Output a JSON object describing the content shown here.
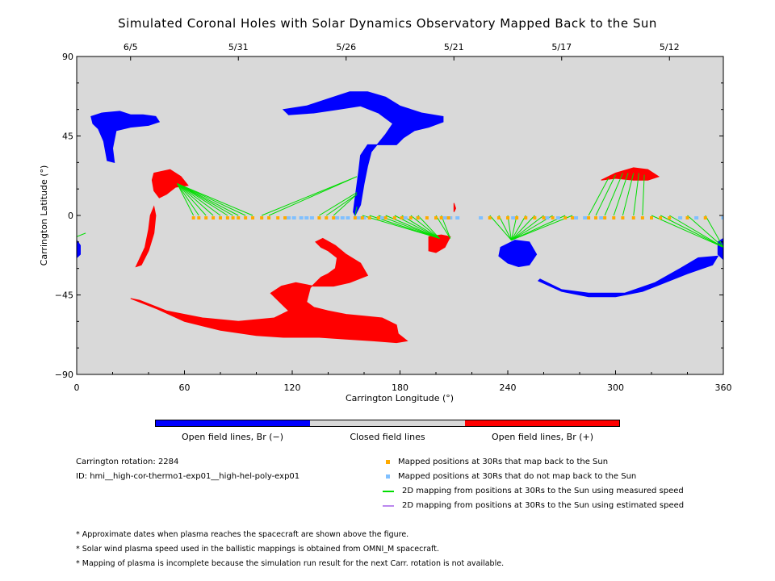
{
  "title": "Simulated Coronal Holes with Solar Dynamics Observatory Mapped Back to the Sun",
  "chart_data": {
    "type": "scatter",
    "xlabel": "Carrington Longitude (°)",
    "ylabel": "Carrington Latitude (°)",
    "xlim": [
      0,
      360
    ],
    "ylim": [
      -90,
      90
    ],
    "x_ticks": [
      0,
      60,
      120,
      180,
      240,
      300,
      360
    ],
    "y_ticks": [
      -90,
      -45,
      0,
      45,
      90
    ],
    "y_tick_labels": [
      "−90",
      "−45",
      "0",
      "45",
      "90"
    ],
    "top_axis_dates": [
      {
        "label": "6/5",
        "lon": 30
      },
      {
        "label": "5/31",
        "lon": 90
      },
      {
        "label": "5/26",
        "lon": 150
      },
      {
        "label": "5/21",
        "lon": 210
      },
      {
        "label": "5/17",
        "lon": 270
      },
      {
        "label": "5/12",
        "lon": 330
      }
    ],
    "background_color": "#d9d9d9",
    "colors": {
      "open_negative": "#0000ff",
      "open_positive": "#ff0000",
      "closed": "#d9d9d9",
      "mapped": "#ffaa00",
      "unmapped": "#80c0ff",
      "measured_line": "#00dd00",
      "estimated_line": "#bb88ee"
    },
    "coronal_holes": [
      {
        "polarity": "negative",
        "points": [
          [
            8,
            56
          ],
          [
            14,
            58
          ],
          [
            24,
            59
          ],
          [
            30,
            57
          ],
          [
            37,
            57
          ],
          [
            44,
            56
          ],
          [
            46,
            53
          ],
          [
            40,
            51
          ],
          [
            30,
            50
          ],
          [
            22,
            48
          ],
          [
            20,
            38
          ],
          [
            21,
            30
          ],
          [
            17,
            31
          ],
          [
            15,
            42
          ],
          [
            12,
            49
          ],
          [
            9,
            52
          ]
        ]
      },
      {
        "polarity": "negative",
        "points": [
          [
            115,
            60
          ],
          [
            128,
            62
          ],
          [
            140,
            66
          ],
          [
            152,
            70
          ],
          [
            162,
            70
          ],
          [
            172,
            67
          ],
          [
            180,
            62
          ],
          [
            192,
            58
          ],
          [
            204,
            56
          ],
          [
            204,
            53
          ],
          [
            196,
            50
          ],
          [
            188,
            48
          ],
          [
            182,
            44
          ],
          [
            178,
            40
          ],
          [
            168,
            40
          ],
          [
            162,
            40
          ],
          [
            158,
            34
          ],
          [
            157,
            25
          ],
          [
            155,
            10
          ],
          [
            154,
            2
          ],
          [
            155,
            0
          ],
          [
            158,
            6
          ],
          [
            160,
            18
          ],
          [
            162,
            28
          ],
          [
            164,
            36
          ],
          [
            172,
            46
          ],
          [
            176,
            52
          ],
          [
            168,
            58
          ],
          [
            158,
            62
          ],
          [
            145,
            60
          ],
          [
            132,
            58
          ],
          [
            118,
            57
          ]
        ]
      },
      {
        "polarity": "negative",
        "points": [
          [
            0,
            -14
          ],
          [
            2,
            -17
          ],
          [
            2,
            -22
          ],
          [
            0,
            -24
          ]
        ]
      },
      {
        "polarity": "negative",
        "points": [
          [
            236,
            -18
          ],
          [
            244,
            -14
          ],
          [
            252,
            -15
          ],
          [
            256,
            -22
          ],
          [
            252,
            -28
          ],
          [
            246,
            -29
          ],
          [
            240,
            -27
          ],
          [
            235,
            -23
          ]
        ]
      },
      {
        "polarity": "negative",
        "points": [
          [
            257,
            -37
          ],
          [
            270,
            -43
          ],
          [
            285,
            -46
          ],
          [
            300,
            -46
          ],
          [
            315,
            -43
          ],
          [
            325,
            -39
          ],
          [
            340,
            -33
          ],
          [
            354,
            -28
          ],
          [
            357,
            -23
          ],
          [
            346,
            -24
          ],
          [
            336,
            -30
          ],
          [
            322,
            -38
          ],
          [
            305,
            -44
          ],
          [
            285,
            -44
          ],
          [
            270,
            -42
          ],
          [
            258,
            -36
          ]
        ]
      },
      {
        "polarity": "negative",
        "points": [
          [
            357,
            -15
          ],
          [
            360,
            -13
          ],
          [
            360,
            -25
          ],
          [
            357,
            -22
          ]
        ]
      },
      {
        "polarity": "positive",
        "points": [
          [
            43,
            24
          ],
          [
            52,
            26
          ],
          [
            58,
            22
          ],
          [
            62,
            17
          ],
          [
            55,
            16
          ],
          [
            50,
            12
          ],
          [
            46,
            10
          ],
          [
            43,
            14
          ],
          [
            42,
            20
          ]
        ]
      },
      {
        "polarity": "positive",
        "points": [
          [
            43,
            5
          ],
          [
            44,
            0
          ],
          [
            43,
            -10
          ],
          [
            40,
            -20
          ],
          [
            36,
            -28
          ],
          [
            33,
            -29
          ],
          [
            38,
            -18
          ],
          [
            40,
            -8
          ],
          [
            41,
            0
          ]
        ]
      },
      {
        "polarity": "positive",
        "points": [
          [
            196,
            -12
          ],
          [
            203,
            -11
          ],
          [
            208,
            -12
          ],
          [
            205,
            -18
          ],
          [
            200,
            -21
          ],
          [
            196,
            -20
          ]
        ]
      },
      {
        "polarity": "positive",
        "points": [
          [
            210,
            7
          ],
          [
            211,
            4
          ],
          [
            210,
            2
          ]
        ]
      },
      {
        "polarity": "positive",
        "points": [
          [
            292,
            20
          ],
          [
            300,
            24
          ],
          [
            310,
            27
          ],
          [
            318,
            26
          ],
          [
            324,
            22
          ],
          [
            318,
            20
          ],
          [
            310,
            20
          ],
          [
            300,
            21
          ]
        ]
      },
      {
        "polarity": "positive",
        "points": [
          [
            30,
            -47
          ],
          [
            45,
            -53
          ],
          [
            60,
            -60
          ],
          [
            80,
            -65
          ],
          [
            100,
            -68
          ],
          [
            115,
            -69
          ],
          [
            135,
            -69
          ],
          [
            150,
            -70
          ],
          [
            165,
            -71
          ],
          [
            178,
            -72
          ],
          [
            184,
            -71
          ],
          [
            179,
            -67
          ],
          [
            178,
            -62
          ],
          [
            170,
            -58
          ],
          [
            160,
            -57
          ],
          [
            150,
            -56
          ],
          [
            140,
            -54
          ],
          [
            132,
            -52
          ],
          [
            128,
            -49
          ],
          [
            130,
            -41
          ],
          [
            136,
            -35
          ],
          [
            140,
            -33
          ],
          [
            144,
            -30
          ],
          [
            145,
            -24
          ],
          [
            140,
            -20
          ],
          [
            136,
            -18
          ],
          [
            133,
            -15
          ],
          [
            137,
            -13
          ],
          [
            144,
            -17
          ],
          [
            150,
            -22
          ],
          [
            158,
            -27
          ],
          [
            162,
            -34
          ],
          [
            152,
            -38
          ],
          [
            143,
            -40
          ],
          [
            132,
            -40
          ],
          [
            122,
            -38
          ],
          [
            114,
            -40
          ],
          [
            108,
            -44
          ],
          [
            114,
            -50
          ],
          [
            118,
            -54
          ],
          [
            110,
            -58
          ],
          [
            90,
            -60
          ],
          [
            70,
            -58
          ],
          [
            50,
            -54
          ],
          [
            35,
            -48
          ]
        ]
      }
    ],
    "mapped_positions_lon": [
      65,
      68,
      72,
      76,
      80,
      84,
      87,
      90,
      94,
      98,
      103,
      107,
      112,
      116,
      135,
      139,
      143,
      155,
      159,
      163,
      168,
      172,
      177,
      181,
      186,
      190,
      195,
      200,
      203,
      207,
      230,
      235,
      240,
      245,
      250,
      255,
      260,
      265,
      272,
      276,
      285,
      289,
      294,
      299,
      304,
      310,
      315,
      320,
      325,
      330,
      340,
      350
    ],
    "unmapped_positions_lon": [
      118,
      121,
      125,
      128,
      131,
      145,
      148,
      151,
      157,
      160,
      170,
      183,
      190,
      205,
      208,
      212,
      225,
      243,
      262,
      268,
      278,
      283,
      292,
      336,
      345,
      360
    ],
    "measured_mappings": [
      [
        [
          65,
          0
        ],
        [
          56,
          18
        ]
      ],
      [
        [
          68,
          0
        ],
        [
          56,
          18
        ]
      ],
      [
        [
          72,
          0
        ],
        [
          56,
          18
        ]
      ],
      [
        [
          76,
          0
        ],
        [
          56,
          18
        ]
      ],
      [
        [
          80,
          0
        ],
        [
          56,
          18
        ]
      ],
      [
        [
          84,
          0
        ],
        [
          56,
          18
        ]
      ],
      [
        [
          87,
          0
        ],
        [
          56,
          18
        ]
      ],
      [
        [
          90,
          0
        ],
        [
          56,
          18
        ]
      ],
      [
        [
          94,
          0
        ],
        [
          56,
          18
        ]
      ],
      [
        [
          98,
          0
        ],
        [
          56,
          18
        ]
      ],
      [
        [
          103,
          0
        ],
        [
          156,
          22
        ]
      ],
      [
        [
          107,
          0
        ],
        [
          156,
          22
        ]
      ],
      [
        [
          135,
          0
        ],
        [
          156,
          13
        ]
      ],
      [
        [
          139,
          0
        ],
        [
          156,
          12
        ]
      ],
      [
        [
          143,
          0
        ],
        [
          156,
          12
        ]
      ],
      [
        [
          155,
          0
        ],
        [
          156,
          5
        ]
      ],
      [
        [
          159,
          0
        ],
        [
          202,
          -13
        ]
      ],
      [
        [
          163,
          0
        ],
        [
          202,
          -13
        ]
      ],
      [
        [
          168,
          0
        ],
        [
          202,
          -13
        ]
      ],
      [
        [
          172,
          0
        ],
        [
          202,
          -13
        ]
      ],
      [
        [
          177,
          0
        ],
        [
          202,
          -13
        ]
      ],
      [
        [
          181,
          0
        ],
        [
          202,
          -13
        ]
      ],
      [
        [
          186,
          0
        ],
        [
          202,
          -13
        ]
      ],
      [
        [
          190,
          0
        ],
        [
          202,
          -13
        ]
      ],
      [
        [
          200,
          0
        ],
        [
          208,
          -13
        ]
      ],
      [
        [
          203,
          0
        ],
        [
          208,
          -13
        ]
      ],
      [
        [
          230,
          0
        ],
        [
          242,
          -14
        ]
      ],
      [
        [
          235,
          0
        ],
        [
          242,
          -14
        ]
      ],
      [
        [
          240,
          0
        ],
        [
          242,
          -14
        ]
      ],
      [
        [
          245,
          0
        ],
        [
          242,
          -14
        ]
      ],
      [
        [
          250,
          0
        ],
        [
          242,
          -14
        ]
      ],
      [
        [
          255,
          0
        ],
        [
          242,
          -14
        ]
      ],
      [
        [
          260,
          0
        ],
        [
          242,
          -14
        ]
      ],
      [
        [
          265,
          0
        ],
        [
          242,
          -14
        ]
      ],
      [
        [
          272,
          0
        ],
        [
          242,
          -14
        ]
      ],
      [
        [
          276,
          0
        ],
        [
          242,
          -14
        ]
      ],
      [
        [
          285,
          0
        ],
        [
          296,
          21
        ]
      ],
      [
        [
          289,
          0
        ],
        [
          300,
          23
        ]
      ],
      [
        [
          294,
          0
        ],
        [
          304,
          24
        ]
      ],
      [
        [
          299,
          0
        ],
        [
          307,
          24
        ]
      ],
      [
        [
          304,
          0
        ],
        [
          310,
          24
        ]
      ],
      [
        [
          310,
          0
        ],
        [
          313,
          24
        ]
      ],
      [
        [
          315,
          0
        ],
        [
          316,
          23
        ]
      ],
      [
        [
          320,
          0
        ],
        [
          360,
          -18
        ]
      ],
      [
        [
          325,
          0
        ],
        [
          360,
          -18
        ]
      ],
      [
        [
          330,
          0
        ],
        [
          360,
          -18
        ]
      ],
      [
        [
          340,
          0
        ],
        [
          360,
          -18
        ]
      ],
      [
        [
          350,
          0
        ],
        [
          360,
          -18
        ]
      ],
      [
        [
          0,
          -12
        ],
        [
          5,
          -10
        ]
      ]
    ]
  },
  "colorbar": {
    "segments": [
      {
        "label": "Open field lines, Br (−)",
        "color": "#0000ff"
      },
      {
        "label": "Closed field lines",
        "color": "#d9d9d9"
      },
      {
        "label": "Open field lines, Br (+)",
        "color": "#ff0000"
      }
    ]
  },
  "info": {
    "rotation": "Carrington rotation: 2284",
    "id": "ID: hmi__high-cor-thermo1-exp01__high-hel-poly-exp01"
  },
  "legend": [
    {
      "label": "Mapped positions at 30Rs that map back to the Sun",
      "color": "#ffaa00",
      "kind": "square"
    },
    {
      "label": "Mapped positions at 30Rs that do not map back to the Sun",
      "color": "#80c0ff",
      "kind": "square"
    },
    {
      "label": "2D mapping from positions at 30Rs to the Sun using measured speed",
      "color": "#00dd00",
      "kind": "line"
    },
    {
      "label": "2D mapping from positions at 30Rs to the Sun using estimated speed",
      "color": "#bb88ee",
      "kind": "line"
    }
  ],
  "footnotes": [
    "* Approximate dates when plasma reaches the spacecraft are shown above the figure.",
    "* Solar wind plasma speed used in the ballistic mappings is obtained from OMNI_M spacecraft.",
    "* Mapping of plasma is incomplete because the simulation run result for the next Carr. rotation is not available."
  ]
}
